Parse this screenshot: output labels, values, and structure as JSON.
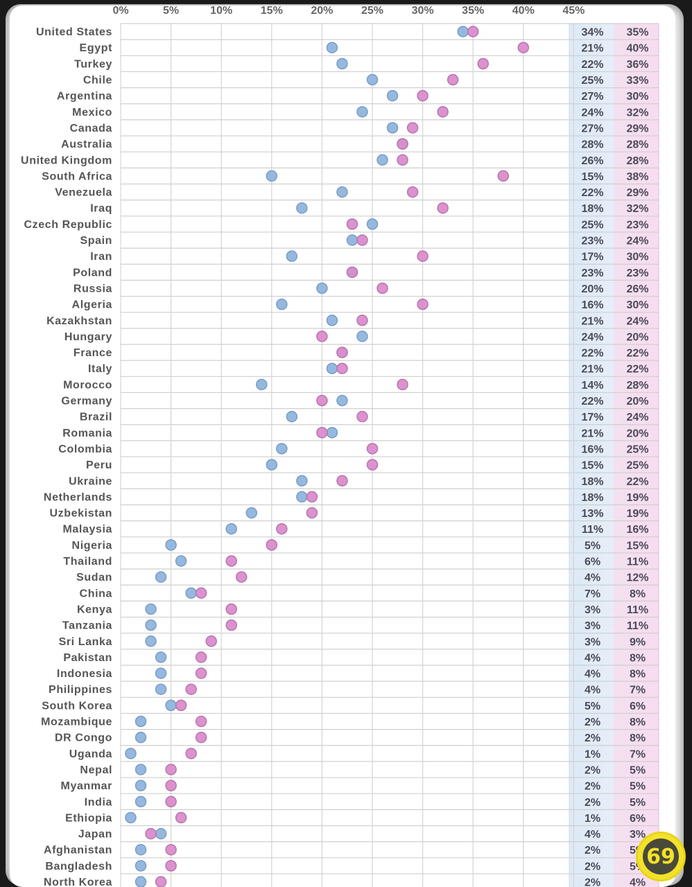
{
  "chart_data": {
    "type": "scatter",
    "subtype": "dot-plot",
    "title": "",
    "xlabel": "",
    "ylabel": "",
    "xlim": [
      0,
      45
    ],
    "x_ticks": [
      "0%",
      "5%",
      "10%",
      "15%",
      "20%",
      "25%",
      "30%",
      "35%",
      "40%",
      "45%"
    ],
    "grid": true,
    "series_colors": {
      "blue": "#8fb4dd",
      "pink": "#d98ccc"
    },
    "column_bg": {
      "blue": "#dde9f6",
      "pink": "#f6dcef"
    },
    "categories": [
      "United States",
      "Egypt",
      "Turkey",
      "Chile",
      "Argentina",
      "Mexico",
      "Canada",
      "Australia",
      "United Kingdom",
      "South Africa",
      "Venezuela",
      "Iraq",
      "Czech Republic",
      "Spain",
      "Iran",
      "Poland",
      "Russia",
      "Algeria",
      "Kazakhstan",
      "Hungary",
      "France",
      "Italy",
      "Morocco",
      "Germany",
      "Brazil",
      "Romania",
      "Colombia",
      "Peru",
      "Ukraine",
      "Netherlands",
      "Uzbekistan",
      "Malaysia",
      "Nigeria",
      "Thailand",
      "Sudan",
      "China",
      "Kenya",
      "Tanzania",
      "Sri Lanka",
      "Pakistan",
      "Indonesia",
      "Philippines",
      "South Korea",
      "Mozambique",
      "DR Congo",
      "Uganda",
      "Nepal",
      "Myanmar",
      "India",
      "Ethiopia",
      "Japan",
      "Afghanistan",
      "Bangladesh",
      "North Korea"
    ],
    "series": [
      {
        "name": "blue",
        "values": [
          34,
          21,
          22,
          25,
          27,
          24,
          27,
          28,
          26,
          15,
          22,
          18,
          25,
          23,
          17,
          23,
          20,
          16,
          21,
          24,
          22,
          21,
          14,
          22,
          17,
          21,
          16,
          15,
          18,
          18,
          13,
          11,
          5,
          6,
          4,
          7,
          3,
          3,
          3,
          4,
          4,
          4,
          5,
          2,
          2,
          1,
          2,
          2,
          2,
          1,
          4,
          2,
          2,
          2
        ]
      },
      {
        "name": "pink",
        "values": [
          35,
          40,
          36,
          33,
          30,
          32,
          29,
          28,
          28,
          38,
          29,
          32,
          23,
          24,
          30,
          23,
          26,
          30,
          24,
          20,
          22,
          22,
          28,
          20,
          24,
          20,
          25,
          25,
          22,
          19,
          19,
          16,
          15,
          11,
          12,
          8,
          11,
          11,
          9,
          8,
          8,
          7,
          6,
          8,
          8,
          7,
          5,
          5,
          5,
          6,
          3,
          5,
          5,
          4
        ]
      }
    ]
  },
  "logo": {
    "text": "69",
    "icon": "cancer-zodiac-icon"
  }
}
